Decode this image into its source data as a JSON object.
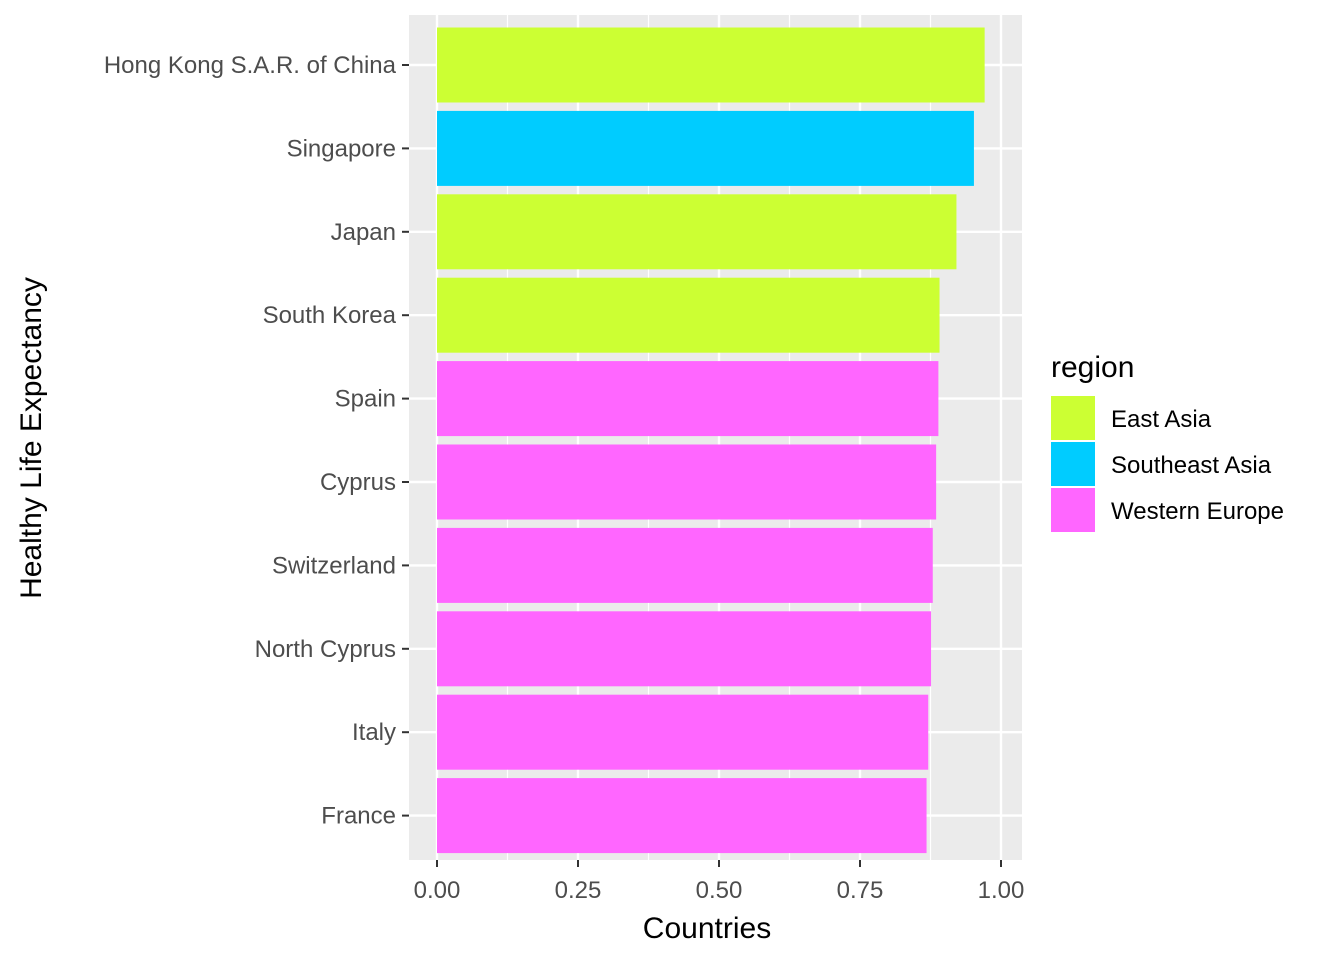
{
  "chart_data": {
    "type": "bar",
    "orientation": "horizontal",
    "xlabel": "Countries",
    "ylabel": "Healthy Life Expectancy",
    "xlim": [
      -0.05,
      1.01
    ],
    "x_ticks": [
      "0.00",
      "0.25",
      "0.50",
      "0.75",
      "1.00"
    ],
    "x_tick_values": [
      0,
      0.25,
      0.5,
      0.75,
      1.0
    ],
    "categories": [
      "Hong Kong S.A.R. of China",
      "Singapore",
      "Japan",
      "South Korea",
      "Spain",
      "Cyprus",
      "Switzerland",
      "North Cyprus",
      "Italy",
      "France"
    ],
    "values": [
      0.971,
      0.952,
      0.921,
      0.891,
      0.889,
      0.885,
      0.879,
      0.876,
      0.871,
      0.868
    ],
    "regions": [
      "East Asia",
      "Southeast Asia",
      "East Asia",
      "East Asia",
      "Western Europe",
      "Western Europe",
      "Western Europe",
      "Western Europe",
      "Western Europe",
      "Western Europe"
    ],
    "legend": {
      "title": "region",
      "position": "right",
      "entries": [
        {
          "label": "East Asia",
          "color": "#CCFF33"
        },
        {
          "label": "Southeast Asia",
          "color": "#00CCFF"
        },
        {
          "label": "Western Europe",
          "color": "#FF66FF"
        }
      ]
    },
    "grid": true,
    "panel_background": "#EBEBEB"
  }
}
